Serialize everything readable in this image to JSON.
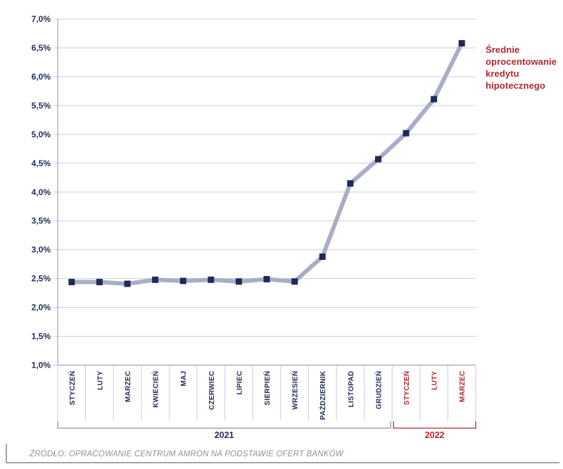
{
  "legend": {
    "text": "Średnie oprocentowanie kredytu hipotecznego"
  },
  "footer": {
    "source": "ŹRÓDŁO: OPRACOWANIE CENTRUM AMRON NA PODSTAWIE OFERT BANKÓW"
  },
  "colors": {
    "navy": "#232e5c",
    "red": "#b2282e",
    "line": "#a9aec5",
    "marker": "#1f2a58",
    "grid": "#c9cedd",
    "axis": "#9aa3bb",
    "separator": "#c9cedd",
    "bracket_gray": "#8f9399",
    "legend_red": "#b5272e"
  },
  "chart_data": {
    "type": "line",
    "title": "",
    "xlabel": "",
    "ylabel": "",
    "grid": true,
    "legend_position": "right",
    "ylim": [
      1.0,
      7.0
    ],
    "categories": [
      "STYCZEŃ",
      "LUTY",
      "MARZEC",
      "KWIECIEŃ",
      "MAJ",
      "CZERWIEC",
      "LIPIEC",
      "SIERPIEŃ",
      "WRZESIEŃ",
      "PAŹDZIERNIK",
      "LISTOPAD",
      "GRUDZIEŃ",
      "STYCZEŃ",
      "LUTY",
      "MARZEC"
    ],
    "category_groups": [
      {
        "year": "2021",
        "start": 0,
        "end": 11
      },
      {
        "year": "2022",
        "start": 12,
        "end": 14
      }
    ],
    "series": [
      {
        "name": "Średnie oprocentowanie kredytu hipotecznego",
        "values": [
          2.44,
          2.44,
          2.41,
          2.48,
          2.46,
          2.48,
          2.45,
          2.49,
          2.45,
          2.88,
          4.15,
          4.57,
          5.02,
          5.61,
          6.58
        ]
      }
    ],
    "yticks": [
      {
        "value": 7.0,
        "label": "7,0%"
      },
      {
        "value": 6.5,
        "label": "6,5%"
      },
      {
        "value": 6.0,
        "label": "6,0%"
      },
      {
        "value": 5.5,
        "label": "5,5%"
      },
      {
        "value": 5.0,
        "label": "5,0%"
      },
      {
        "value": 4.5,
        "label": "4,5%"
      },
      {
        "value": 4.0,
        "label": "4,0%"
      },
      {
        "value": 3.5,
        "label": "3,5%"
      },
      {
        "value": 3.0,
        "label": "3,0%"
      },
      {
        "value": 2.5,
        "label": "2,5%"
      },
      {
        "value": 2.0,
        "label": "2,0%"
      },
      {
        "value": 1.5,
        "label": "1,5%"
      },
      {
        "value": 1.0,
        "label": "1,0%"
      }
    ]
  }
}
